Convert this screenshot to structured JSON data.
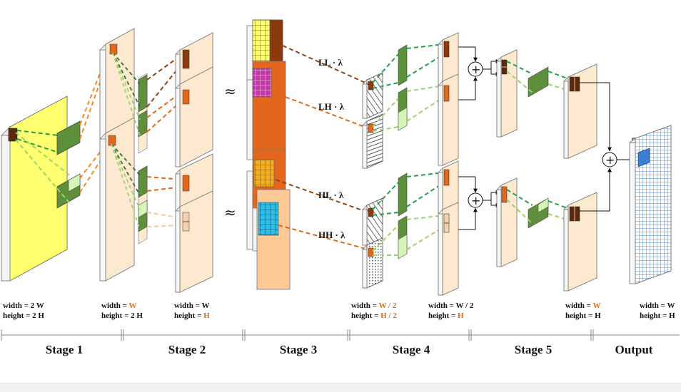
{
  "colors": {
    "yellow": "#ffff70",
    "peach": "#fde9cf",
    "orange_feature": "#e2671c",
    "brown_feature": "#8b3a10",
    "green_dark": "#5e8f3a",
    "green_light": "#d3f5b5",
    "blue_output": "#3a7fd6",
    "magenta_grid": "#c23aa8",
    "cyan_grid": "#2ec0e0",
    "line_orange": "#f08a24",
    "line_brown": "#8b4513",
    "line_green": "#1fa34a",
    "line_lightgreen": "#9ad46b",
    "accent_text": "#e36c09"
  },
  "stages": [
    "Stage 1",
    "Stage 2",
    "Stage 3",
    "Stage 4",
    "Stage 5",
    "Output"
  ],
  "ops": {
    "ll": "LL · λ",
    "lh": "LH · λ",
    "hl": "HL · λ",
    "hh": "HH · λ",
    "approx": "≈",
    "plus": "+"
  },
  "dims": {
    "s1": {
      "w_prefix": "width = ",
      "w_val": "2 W",
      "h_prefix": "height = ",
      "h_val": "2 H"
    },
    "s2a": {
      "w_prefix": "width = ",
      "w_val": "W",
      "h_prefix": "height = ",
      "h_val": "2 H"
    },
    "s2b": {
      "w_prefix": "width = ",
      "w_val": "W",
      "h_prefix": "height = ",
      "h_val": "H"
    },
    "s4a": {
      "w_prefix": "width = ",
      "w_val": "W / 2",
      "h_prefix": "height = ",
      "h_val": "H / 2"
    },
    "s4b": {
      "w_prefix": "width = ",
      "w_val": "W / 2",
      "h_prefix": "height = ",
      "h_val": "H"
    },
    "s5": {
      "w_prefix": "width = ",
      "w_val": "W",
      "h_prefix": "height = ",
      "h_val": "H"
    },
    "out": {
      "w_prefix": "width = ",
      "w_val": "W",
      "h_prefix": "height = ",
      "h_val": "H"
    }
  }
}
